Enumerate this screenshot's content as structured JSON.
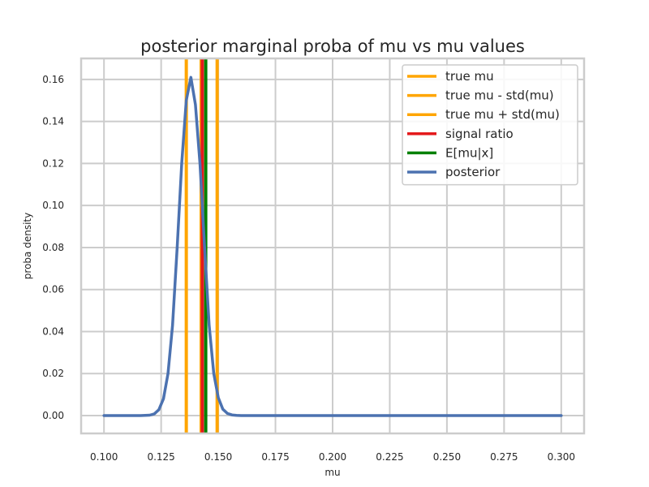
{
  "chart_data": {
    "type": "line",
    "title": "posterior marginal proba of mu vs mu values",
    "xlabel": "mu",
    "ylabel": "proba density",
    "xlim": [
      0.09,
      0.31
    ],
    "ylim": [
      -0.0085,
      0.17
    ],
    "x_ticks": [
      "0.100",
      "0.125",
      "0.150",
      "0.175",
      "0.200",
      "0.225",
      "0.250",
      "0.275",
      "0.300"
    ],
    "y_ticks": [
      "0.00",
      "0.02",
      "0.04",
      "0.06",
      "0.08",
      "0.10",
      "0.12",
      "0.14",
      "0.16"
    ],
    "grid": true,
    "legend_position": "top-right",
    "vertical_lines": [
      {
        "name": "true mu",
        "x": 0.1425,
        "color": "#FFA500"
      },
      {
        "name": "true mu - std(mu)",
        "x": 0.136,
        "color": "#FFA500"
      },
      {
        "name": "true mu + std(mu)",
        "x": 0.1495,
        "color": "#FFA500"
      },
      {
        "name": "signal ratio",
        "x": 0.143,
        "color": "#E41A1C"
      },
      {
        "name": "E[mu|x]",
        "x": 0.1445,
        "color": "#008000"
      }
    ],
    "series": [
      {
        "name": "posterior",
        "color": "#4C72B0",
        "x": [
          0.1,
          0.104,
          0.108,
          0.112,
          0.116,
          0.12,
          0.122,
          0.124,
          0.126,
          0.128,
          0.13,
          0.132,
          0.134,
          0.136,
          0.138,
          0.14,
          0.142,
          0.144,
          0.146,
          0.148,
          0.15,
          0.152,
          0.154,
          0.156,
          0.158,
          0.16,
          0.162,
          0.164,
          0.166,
          0.168,
          0.17,
          0.172,
          0.176,
          0.18,
          0.2,
          0.22,
          0.24,
          0.26,
          0.28,
          0.3
        ],
        "values": [
          0.0,
          0.0,
          0.0,
          0.0,
          0.0,
          0.0002,
          0.0008,
          0.0028,
          0.008,
          0.02,
          0.043,
          0.08,
          0.12,
          0.15,
          0.161,
          0.148,
          0.12,
          0.08,
          0.043,
          0.02,
          0.0085,
          0.003,
          0.001,
          0.0003,
          0.0001,
          0.0,
          0.0,
          0.0,
          0.0,
          0.0,
          0.0,
          0.0,
          0.0,
          0.0,
          0.0,
          0.0,
          0.0,
          0.0,
          0.0,
          0.0
        ]
      }
    ]
  }
}
